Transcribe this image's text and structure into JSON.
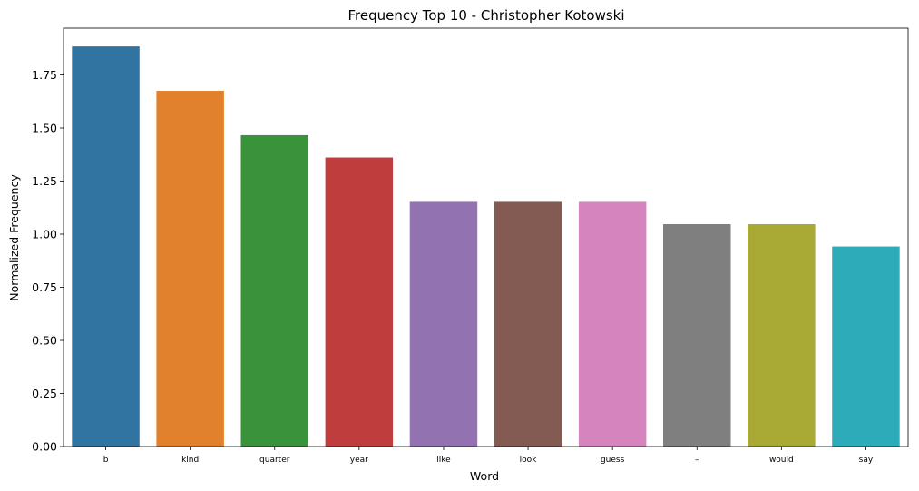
{
  "chart_data": {
    "type": "bar",
    "title": "Frequency Top 10 - Christopher Kotowski",
    "xlabel": "Word",
    "ylabel": "Normalized Frequency",
    "categories": [
      "b",
      "kind",
      "quarter",
      "year",
      "like",
      "look",
      "guess",
      "–",
      "would",
      "say"
    ],
    "values": [
      1.884,
      1.675,
      1.466,
      1.361,
      1.152,
      1.152,
      1.152,
      1.047,
      1.047,
      0.942
    ],
    "colors": [
      "#3274a1",
      "#e1812c",
      "#3a923a",
      "#c03d3e",
      "#9372b2",
      "#845b53",
      "#d684bd",
      "#7f7f7f",
      "#a9aa35",
      "#2eabb8"
    ],
    "ylim": [
      0,
      1.97
    ],
    "yticks": [
      "0.00",
      "0.25",
      "0.50",
      "0.75",
      "1.00",
      "1.25",
      "1.50",
      "1.75"
    ],
    "grid": false,
    "legend": "none"
  }
}
